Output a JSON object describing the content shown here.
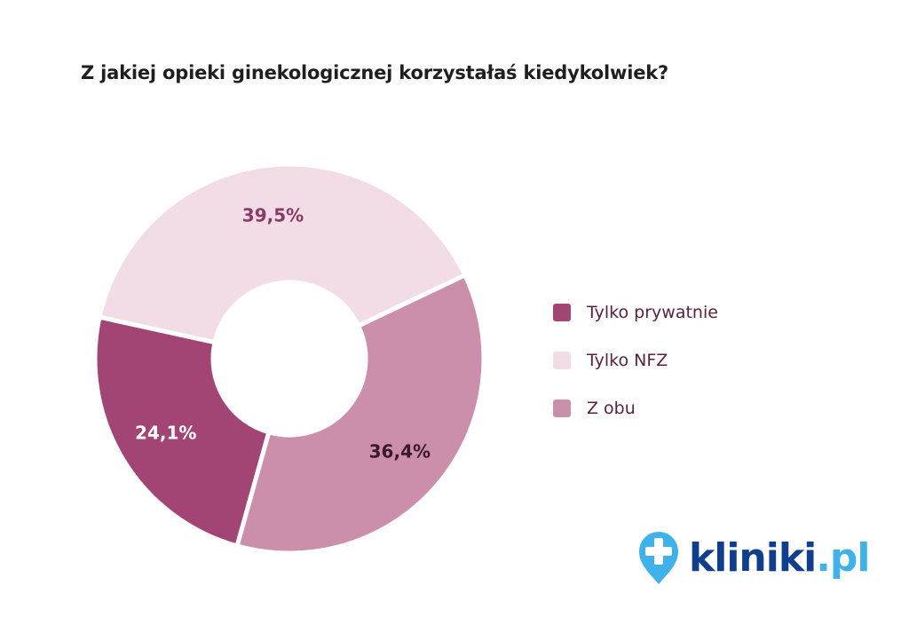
{
  "title": "Z jakiej opieki ginekologicznej korzystałaś kiedykolwiek?",
  "chart_data": {
    "type": "pie",
    "variant": "donut",
    "title": "Z jakiej opieki ginekologicznej korzystałaś kiedykolwiek?",
    "categories": [
      "Tylko prywatnie",
      "Tylko NFZ",
      "Z obu"
    ],
    "values": [
      24.1,
      39.5,
      36.4
    ],
    "labels": [
      "24,1%",
      "39,5%",
      "36,4%"
    ],
    "colors": [
      "#a34574",
      "#f2dde6",
      "#cb8fac"
    ],
    "label_colors": [
      "#ffffff",
      "#8a3a65",
      "#3a1a2a"
    ],
    "legend_placement": "right"
  },
  "logo": {
    "name": "kliniki",
    "suffix": ".pl",
    "icon": "map-pin-plus-icon",
    "color": "#0f3f8c",
    "accent": "#3fb2ea"
  }
}
